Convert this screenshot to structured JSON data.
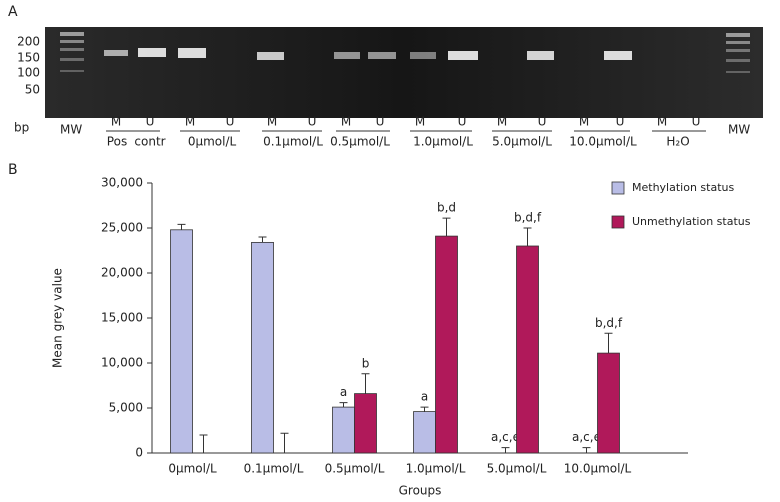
{
  "panel_a": {
    "label": "A",
    "sizes": [
      200,
      150,
      100,
      50
    ],
    "unit": "bp",
    "mw_left": "MW",
    "mw_right": "MW",
    "lanes": [
      "M",
      "U",
      "M",
      "U",
      "M",
      "U",
      "M",
      "U",
      "M",
      "U",
      "M",
      "U",
      "M",
      "U",
      "M",
      "U"
    ],
    "groups": [
      "Pos",
      "contr",
      "0μmol/L",
      "0.1μmol/L",
      "0.5μmol/L",
      "1.0μmol/L",
      "5.0μmol/L",
      "10.0μmol/L",
      "H₂O"
    ]
  },
  "chart_data": {
    "type": "bar",
    "panel_label": "B",
    "y_label": "Mean grey value",
    "x_label": "Groups",
    "categories": [
      "0μmol/L",
      "0.1μmol/L",
      "0.5μmol/L",
      "1.0μmol/L",
      "5.0μmol/L",
      "10.0μmol/L"
    ],
    "series": [
      {
        "name": "Methylation status",
        "color": "#b9bde6",
        "values": [
          24800,
          23400,
          5100,
          4600,
          0,
          0
        ],
        "errors": [
          600,
          600,
          500,
          500,
          600,
          600
        ],
        "annotations": [
          null,
          null,
          "a",
          "a",
          "a,c,e",
          "a,c,e"
        ]
      },
      {
        "name": "Unmethylation status",
        "color": "#b0195a",
        "values": [
          0,
          0,
          6600,
          24100,
          23000,
          11100
        ],
        "errors": [
          2000,
          2200,
          2200,
          2000,
          2000,
          2200
        ],
        "annotations": [
          null,
          null,
          "b",
          "b,d",
          "b,d,f",
          "b,d,f"
        ]
      }
    ],
    "ylim": [
      0,
      30000
    ],
    "yticks": [
      0,
      {
        "value": 5000,
        "label": "5,000"
      },
      {
        "value": 10000,
        "label": "10,000"
      },
      {
        "value": 15000,
        "label": "15,000"
      },
      {
        "value": 20000,
        "label": "20,000"
      },
      {
        "value": 25000,
        "label": "25,000"
      },
      {
        "value": 30000,
        "label": "30,000"
      }
    ],
    "legend": "top-right"
  }
}
